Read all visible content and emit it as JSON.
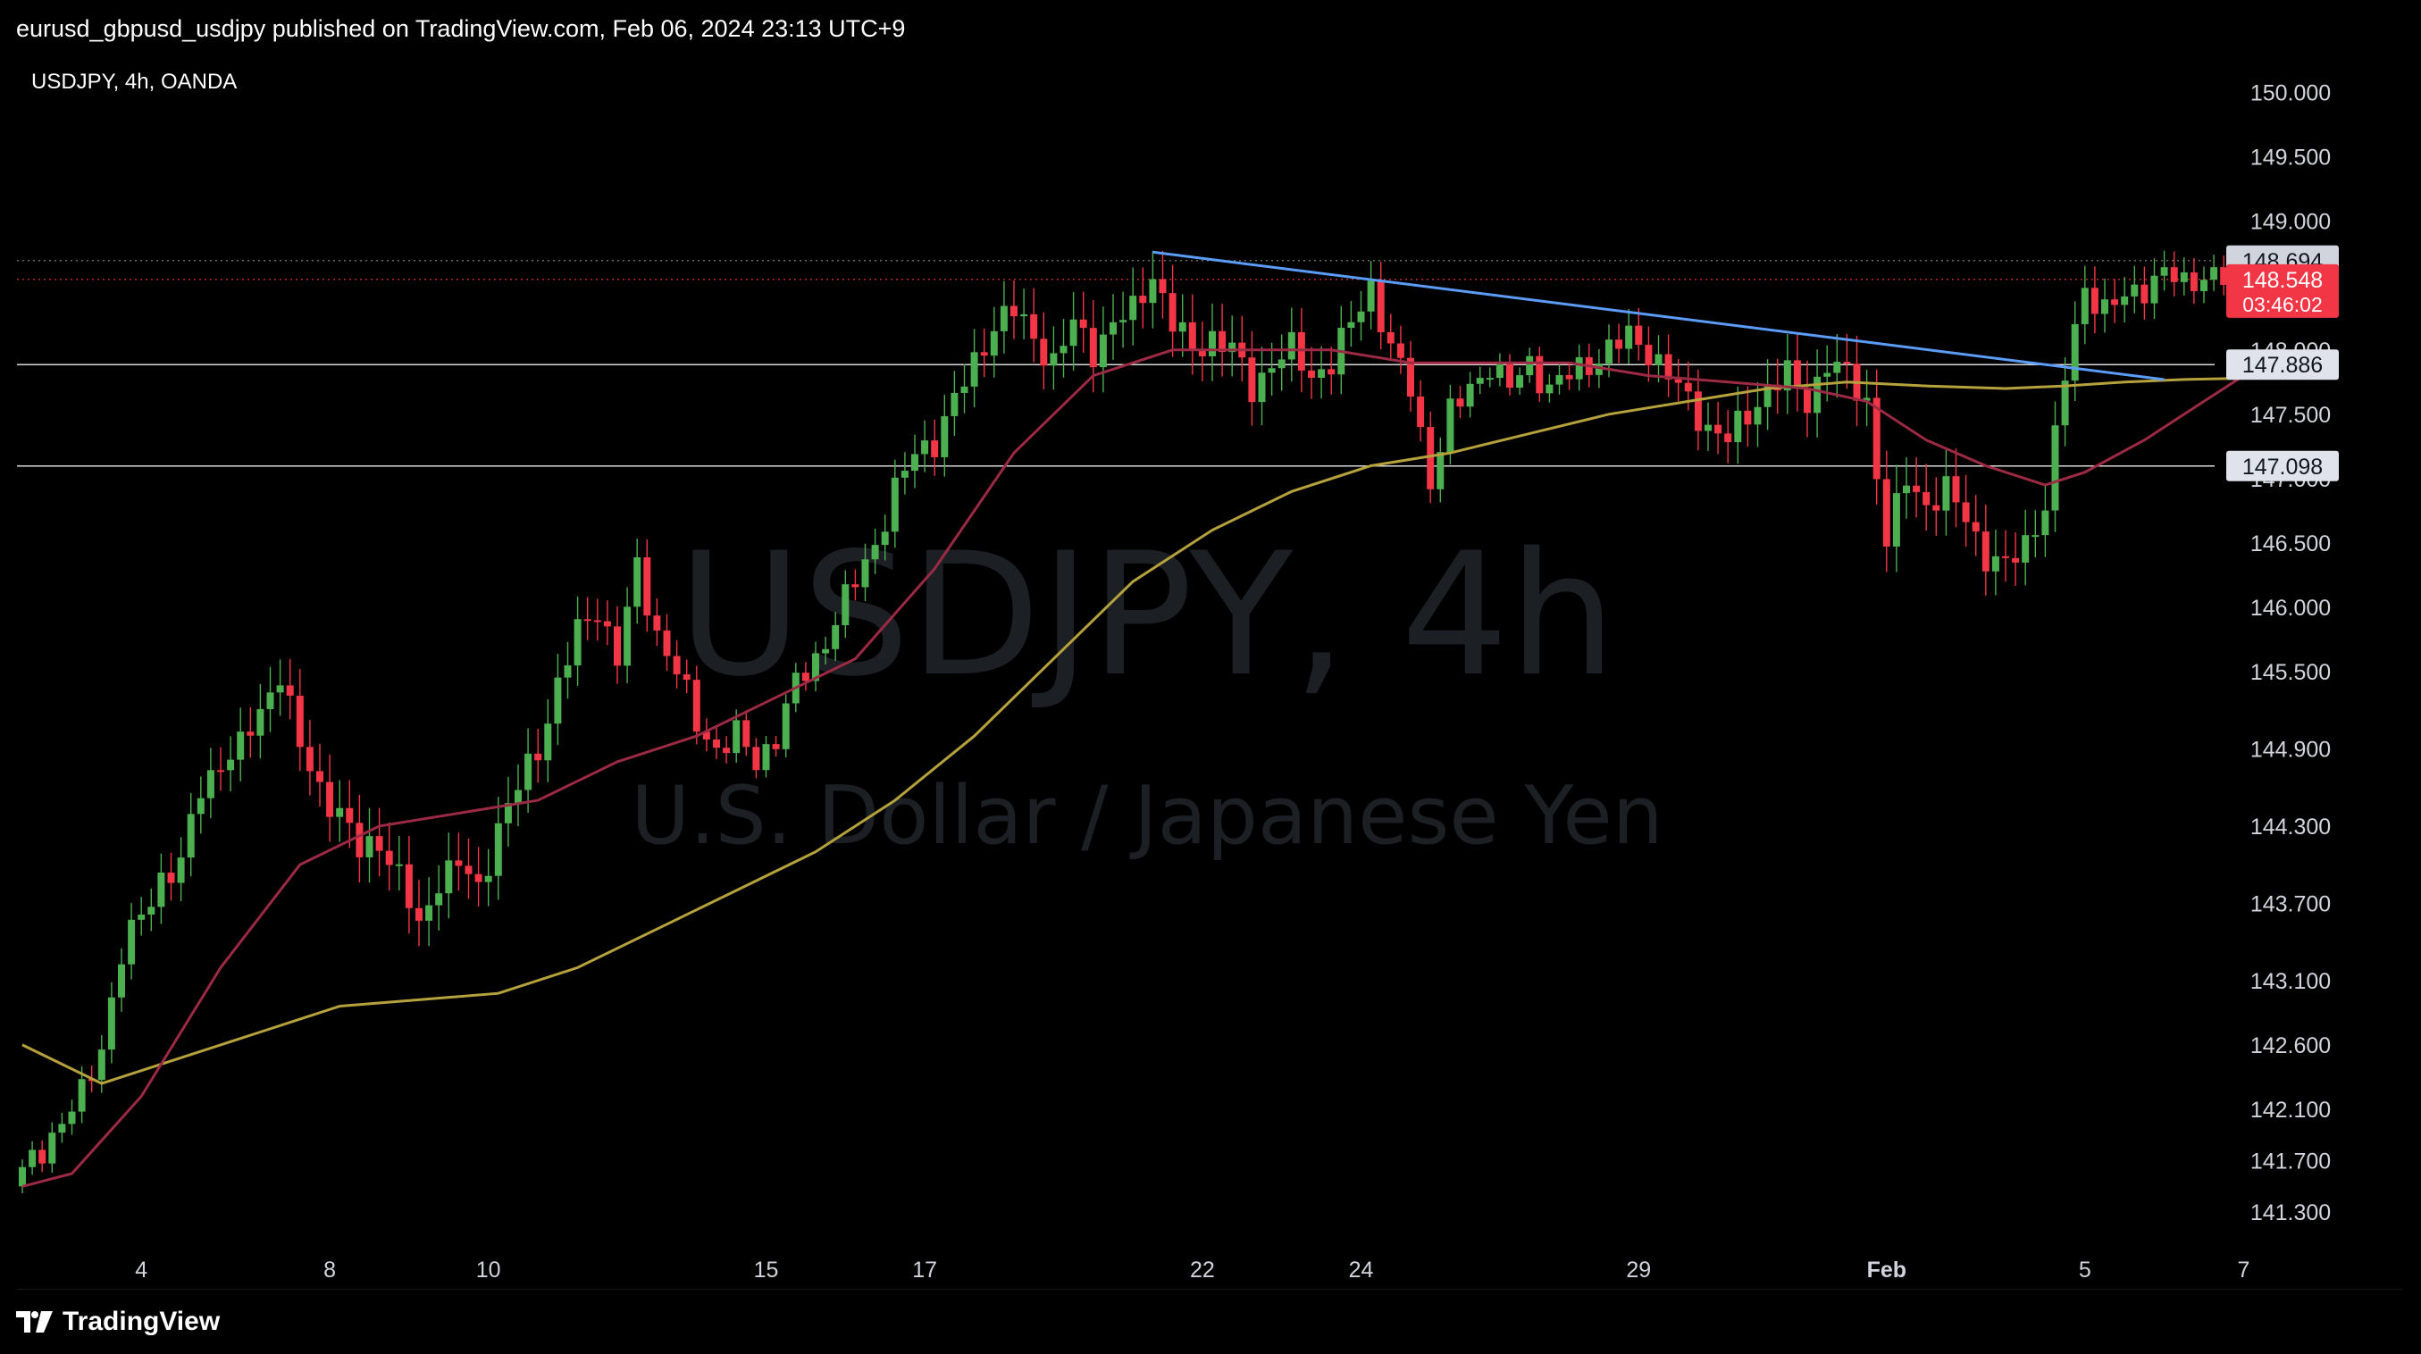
{
  "header": {
    "publish_line": "eurusd_gbpusd_usdjpy published on TradingView.com, Feb 06, 2024 23:13 UTC+9"
  },
  "footer": {
    "brand": "TradingView",
    "logo_icon": "tradingview-logo-icon"
  },
  "colors": {
    "background": "#000000",
    "up_candle": "#4caf50",
    "down_candle": "#f23645",
    "ma_fast": "#9c2a44",
    "ma_slow": "#b5a23c",
    "trendline": "#5b9cf6",
    "level_line": "#d9d9d9",
    "axis_text": "#d1d4dc",
    "watermark": "#1c1f23"
  },
  "chart_data": {
    "type": "candlestick",
    "symbol_label": "USDJPY, 4h, OANDA",
    "watermark": {
      "symbol": "USDJPY, 4h",
      "description": "U.S. Dollar / Japanese Yen"
    },
    "y_axis": {
      "ticks": [
        "150.000",
        "149.500",
        "149.000",
        "148.000",
        "147.500",
        "147.000",
        "146.500",
        "146.000",
        "145.500",
        "144.900",
        "144.300",
        "143.700",
        "143.100",
        "142.600",
        "142.100",
        "141.700",
        "141.300"
      ],
      "range": [
        141.1,
        150.15
      ]
    },
    "x_axis": {
      "ticks": [
        "4",
        "8",
        "10",
        "15",
        "17",
        "22",
        "24",
        "29",
        "Feb",
        "5",
        "7"
      ],
      "tick_bar_index": [
        12,
        31,
        47,
        75,
        91,
        119,
        135,
        163,
        188,
        208,
        224
      ]
    },
    "price_labels": [
      {
        "value": 148.694,
        "text": "148.694",
        "style": "high",
        "dotted": true
      },
      {
        "value": 148.548,
        "text": "148.548",
        "countdown": "03:46:02",
        "style": "last",
        "dotted": true
      },
      {
        "value": 147.886,
        "text": "147.886",
        "style": "level",
        "line": true
      },
      {
        "value": 147.098,
        "text": "147.098",
        "style": "level",
        "line": true
      }
    ],
    "trendline": {
      "from": [
        114,
        148.76
      ],
      "to": [
        216,
        147.77
      ]
    },
    "waypoints": [
      [
        0,
        141.6
      ],
      [
        3,
        141.9
      ],
      [
        6,
        142.2
      ],
      [
        8,
        142.6
      ],
      [
        10,
        143.3
      ],
      [
        12,
        143.6
      ],
      [
        14,
        143.9
      ],
      [
        16,
        144.0
      ],
      [
        18,
        144.6
      ],
      [
        20,
        144.8
      ],
      [
        22,
        144.9
      ],
      [
        24,
        145.2
      ],
      [
        26,
        145.5
      ],
      [
        28,
        144.9
      ],
      [
        30,
        144.6
      ],
      [
        32,
        144.4
      ],
      [
        34,
        144.1
      ],
      [
        36,
        144.2
      ],
      [
        38,
        143.9
      ],
      [
        40,
        143.5
      ],
      [
        42,
        143.9
      ],
      [
        44,
        144.0
      ],
      [
        46,
        143.8
      ],
      [
        48,
        144.3
      ],
      [
        50,
        144.6
      ],
      [
        52,
        144.9
      ],
      [
        54,
        145.4
      ],
      [
        56,
        145.8
      ],
      [
        58,
        146.0
      ],
      [
        60,
        145.6
      ],
      [
        62,
        146.3
      ],
      [
        64,
        145.8
      ],
      [
        66,
        145.5
      ],
      [
        68,
        145.1
      ],
      [
        70,
        144.9
      ],
      [
        72,
        145.0
      ],
      [
        74,
        144.8
      ],
      [
        76,
        145.0
      ],
      [
        78,
        145.4
      ],
      [
        80,
        145.6
      ],
      [
        82,
        145.9
      ],
      [
        84,
        146.2
      ],
      [
        86,
        146.5
      ],
      [
        88,
        146.9
      ],
      [
        90,
        147.2
      ],
      [
        92,
        147.3
      ],
      [
        94,
        147.6
      ],
      [
        96,
        147.9
      ],
      [
        98,
        148.2
      ],
      [
        100,
        148.3
      ],
      [
        102,
        148.1
      ],
      [
        104,
        147.9
      ],
      [
        106,
        148.2
      ],
      [
        108,
        148.0
      ],
      [
        110,
        148.2
      ],
      [
        112,
        148.3
      ],
      [
        114,
        148.6
      ],
      [
        116,
        148.2
      ],
      [
        118,
        148.0
      ],
      [
        120,
        148.1
      ],
      [
        122,
        148.0
      ],
      [
        124,
        147.7
      ],
      [
        126,
        147.9
      ],
      [
        128,
        148.0
      ],
      [
        130,
        147.8
      ],
      [
        132,
        147.9
      ],
      [
        134,
        148.2
      ],
      [
        136,
        148.5
      ],
      [
        138,
        148.0
      ],
      [
        140,
        147.7
      ],
      [
        142,
        147.0
      ],
      [
        144,
        147.5
      ],
      [
        146,
        147.7
      ],
      [
        148,
        147.9
      ],
      [
        150,
        147.7
      ],
      [
        152,
        147.9
      ],
      [
        154,
        147.7
      ],
      [
        156,
        147.8
      ],
      [
        158,
        147.9
      ],
      [
        160,
        148.0
      ],
      [
        162,
        148.1
      ],
      [
        164,
        148.0
      ],
      [
        166,
        147.8
      ],
      [
        168,
        147.6
      ],
      [
        170,
        147.4
      ],
      [
        172,
        147.3
      ],
      [
        174,
        147.5
      ],
      [
        176,
        147.7
      ],
      [
        178,
        147.8
      ],
      [
        180,
        147.6
      ],
      [
        182,
        147.9
      ],
      [
        184,
        147.8
      ],
      [
        186,
        147.6
      ],
      [
        188,
        146.5
      ],
      [
        190,
        147.0
      ],
      [
        192,
        146.8
      ],
      [
        194,
        146.9
      ],
      [
        196,
        146.7
      ],
      [
        198,
        146.4
      ],
      [
        200,
        146.3
      ],
      [
        202,
        146.5
      ],
      [
        204,
        146.8
      ],
      [
        206,
        147.8
      ],
      [
        208,
        148.5
      ],
      [
        210,
        148.3
      ],
      [
        212,
        148.4
      ],
      [
        214,
        148.5
      ],
      [
        216,
        148.6
      ],
      [
        218,
        148.5
      ],
      [
        220,
        148.6
      ],
      [
        222,
        148.55
      ]
    ],
    "ma_fast_path": [
      [
        0,
        141.5
      ],
      [
        5,
        141.6
      ],
      [
        12,
        142.2
      ],
      [
        20,
        143.2
      ],
      [
        28,
        144.0
      ],
      [
        36,
        144.3
      ],
      [
        44,
        144.4
      ],
      [
        52,
        144.5
      ],
      [
        60,
        144.8
      ],
      [
        68,
        145.0
      ],
      [
        76,
        145.3
      ],
      [
        84,
        145.6
      ],
      [
        92,
        146.3
      ],
      [
        100,
        147.2
      ],
      [
        108,
        147.8
      ],
      [
        116,
        148.0
      ],
      [
        124,
        148.0
      ],
      [
        132,
        148.0
      ],
      [
        140,
        147.9
      ],
      [
        148,
        147.9
      ],
      [
        156,
        147.9
      ],
      [
        164,
        147.8
      ],
      [
        172,
        147.75
      ],
      [
        180,
        147.7
      ],
      [
        186,
        147.6
      ],
      [
        192,
        147.3
      ],
      [
        198,
        147.1
      ],
      [
        204,
        146.95
      ],
      [
        208,
        147.05
      ],
      [
        214,
        147.3
      ],
      [
        220,
        147.6
      ],
      [
        226,
        147.9
      ]
    ],
    "ma_slow_path": [
      [
        0,
        142.6
      ],
      [
        8,
        142.3
      ],
      [
        16,
        142.5
      ],
      [
        24,
        142.7
      ],
      [
        32,
        142.9
      ],
      [
        40,
        142.95
      ],
      [
        48,
        143.0
      ],
      [
        56,
        143.2
      ],
      [
        64,
        143.5
      ],
      [
        72,
        143.8
      ],
      [
        80,
        144.1
      ],
      [
        88,
        144.5
      ],
      [
        96,
        145.0
      ],
      [
        104,
        145.6
      ],
      [
        112,
        146.2
      ],
      [
        120,
        146.6
      ],
      [
        128,
        146.9
      ],
      [
        136,
        147.1
      ],
      [
        144,
        147.2
      ],
      [
        152,
        147.35
      ],
      [
        160,
        147.5
      ],
      [
        168,
        147.6
      ],
      [
        176,
        147.7
      ],
      [
        184,
        147.75
      ],
      [
        192,
        147.72
      ],
      [
        200,
        147.7
      ],
      [
        206,
        147.72
      ],
      [
        212,
        147.75
      ],
      [
        218,
        147.77
      ],
      [
        224,
        147.78
      ],
      [
        228,
        147.78
      ]
    ]
  }
}
